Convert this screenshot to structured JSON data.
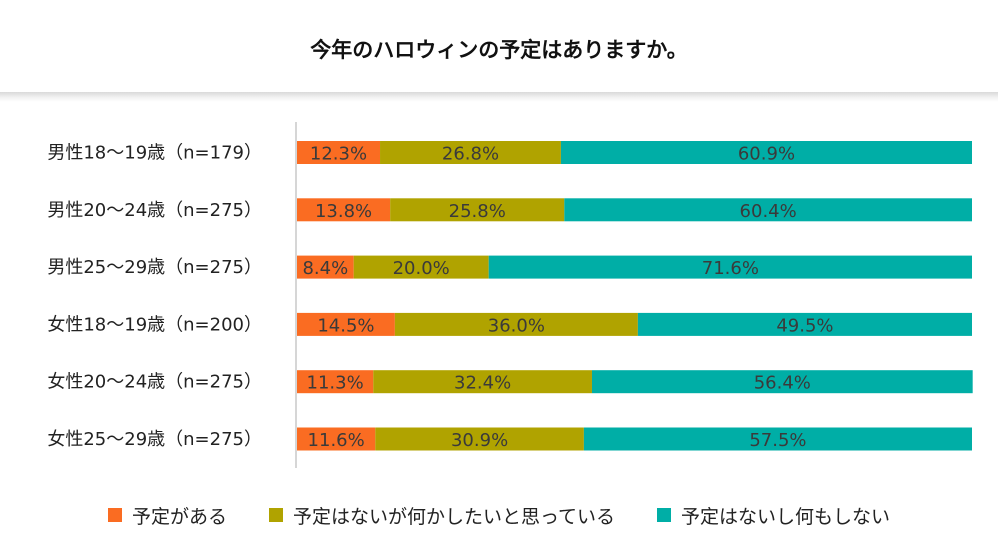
{
  "colors": {
    "plan": "#fa6c22",
    "want": "#b0a300",
    "none": "#00aea6",
    "axis": "#c8c8c8",
    "label_text": "#3a3a3a"
  },
  "chart_data": {
    "type": "bar",
    "orientation": "horizontal",
    "stacked": true,
    "title": "今年のハロウィンの予定はありますか。",
    "categories": [
      "男性18〜19歳（n=179）",
      "男性20〜24歳（n=275）",
      "男性25〜29歳（n=275）",
      "女性18〜19歳（n=200）",
      "女性20〜24歳（n=275）",
      "女性25〜29歳（n=275）"
    ],
    "series": [
      {
        "name": "予定がある",
        "values": [
          12.3,
          13.8,
          8.4,
          14.5,
          11.3,
          11.6
        ]
      },
      {
        "name": "予定はないが何かしたいと思っている",
        "values": [
          26.8,
          25.8,
          20.0,
          36.0,
          32.4,
          30.9
        ]
      },
      {
        "name": "予定はないし何もしない",
        "values": [
          60.9,
          60.4,
          71.6,
          49.5,
          56.4,
          57.5
        ]
      }
    ],
    "xlim": [
      0,
      100
    ],
    "value_format": "percent_1dp",
    "legend_position": "bottom",
    "grid": false
  }
}
